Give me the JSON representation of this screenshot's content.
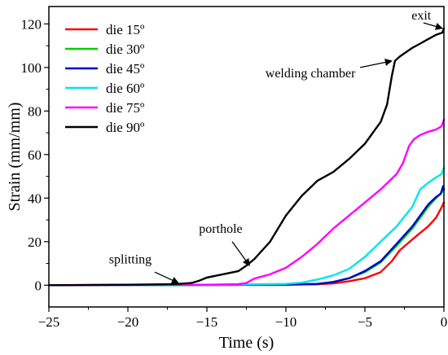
{
  "chart_data": {
    "type": "line",
    "xlabel": "Time (s)",
    "ylabel": "Strain (mm/mm)",
    "xlim": [
      -25,
      0
    ],
    "ylim": [
      -10,
      128
    ],
    "x_ticks": [
      -25,
      -20,
      -15,
      -10,
      -5,
      0
    ],
    "y_ticks": [
      0,
      20,
      40,
      60,
      80,
      100,
      120
    ],
    "grid": false,
    "legend_position": "top-left",
    "series": [
      {
        "name": "die 15º",
        "color": "#ff0000",
        "points": [
          [
            -25,
            0
          ],
          [
            -15,
            0.1
          ],
          [
            -10,
            0.2
          ],
          [
            -8,
            0.4
          ],
          [
            -7,
            0.8
          ],
          [
            -6,
            1.8
          ],
          [
            -5,
            3.2
          ],
          [
            -4,
            6
          ],
          [
            -3.3,
            11
          ],
          [
            -2.8,
            16
          ],
          [
            -2,
            21
          ],
          [
            -1,
            27
          ],
          [
            -0.5,
            31
          ],
          [
            -0.2,
            35
          ],
          [
            0,
            38
          ]
        ]
      },
      {
        "name": "die 30º",
        "color": "#00d000",
        "points": [
          [
            -25,
            0
          ],
          [
            -15,
            0.1
          ],
          [
            -10,
            0.3
          ],
          [
            -8,
            0.6
          ],
          [
            -7,
            1.5
          ],
          [
            -6,
            3.2
          ],
          [
            -5,
            6
          ],
          [
            -4,
            10.5
          ],
          [
            -3,
            18
          ],
          [
            -2,
            26
          ],
          [
            -1.5,
            31
          ],
          [
            -1,
            36
          ],
          [
            -0.5,
            40
          ],
          [
            -0.1,
            43
          ],
          [
            0,
            44
          ]
        ]
      },
      {
        "name": "die 45º",
        "color": "#0000cc",
        "points": [
          [
            -25,
            0
          ],
          [
            -15,
            0.1
          ],
          [
            -10,
            0.3
          ],
          [
            -8,
            0.6
          ],
          [
            -7,
            1.5
          ],
          [
            -6,
            3.2
          ],
          [
            -5,
            6.5
          ],
          [
            -4,
            11
          ],
          [
            -3,
            19
          ],
          [
            -2,
            27
          ],
          [
            -1.5,
            32
          ],
          [
            -1,
            37
          ],
          [
            -0.5,
            40.5
          ],
          [
            -0.2,
            42
          ],
          [
            -0.05,
            45.5
          ],
          [
            0,
            44
          ]
        ]
      },
      {
        "name": "die 60º",
        "color": "#00e5ee",
        "points": [
          [
            -25,
            0
          ],
          [
            -15,
            0.1
          ],
          [
            -10,
            0.6
          ],
          [
            -9,
            1.2
          ],
          [
            -8,
            2.6
          ],
          [
            -7,
            4.5
          ],
          [
            -6,
            7.5
          ],
          [
            -5,
            13
          ],
          [
            -4,
            20
          ],
          [
            -3,
            27
          ],
          [
            -2,
            36
          ],
          [
            -1.5,
            44
          ],
          [
            -1,
            47
          ],
          [
            -0.5,
            49.5
          ],
          [
            -0.15,
            51
          ],
          [
            0,
            54
          ]
        ]
      },
      {
        "name": "die 75º",
        "color": "#ff00ff",
        "points": [
          [
            -25,
            0
          ],
          [
            -15,
            0.2
          ],
          [
            -13,
            0.5
          ],
          [
            -12.5,
            1
          ],
          [
            -12,
            3
          ],
          [
            -11,
            5
          ],
          [
            -10,
            8
          ],
          [
            -9,
            13
          ],
          [
            -8,
            19
          ],
          [
            -7,
            26
          ],
          [
            -6,
            32
          ],
          [
            -5,
            38
          ],
          [
            -4,
            44
          ],
          [
            -3,
            51
          ],
          [
            -2.6,
            56
          ],
          [
            -2.2,
            64
          ],
          [
            -1.9,
            67
          ],
          [
            -1.5,
            69
          ],
          [
            -1,
            70.5
          ],
          [
            -0.5,
            71.5
          ],
          [
            -0.15,
            73
          ],
          [
            0,
            76
          ]
        ]
      },
      {
        "name": "die 90º",
        "color": "#000000",
        "points": [
          [
            -25,
            0
          ],
          [
            -20,
            0.2
          ],
          [
            -17,
            0.5
          ],
          [
            -16,
            1
          ],
          [
            -15.5,
            2
          ],
          [
            -15,
            3.5
          ],
          [
            -14,
            5
          ],
          [
            -13,
            6.5
          ],
          [
            -12.5,
            9
          ],
          [
            -12,
            12
          ],
          [
            -11.5,
            16
          ],
          [
            -11,
            20
          ],
          [
            -10.5,
            26
          ],
          [
            -10,
            32
          ],
          [
            -9,
            41
          ],
          [
            -8,
            48
          ],
          [
            -7,
            52
          ],
          [
            -6,
            58
          ],
          [
            -5,
            65
          ],
          [
            -4,
            75
          ],
          [
            -3.6,
            83
          ],
          [
            -3.3,
            96
          ],
          [
            -3.1,
            103
          ],
          [
            -2.8,
            105
          ],
          [
            -2,
            109
          ],
          [
            -1.5,
            111
          ],
          [
            -1,
            113
          ],
          [
            -0.5,
            115
          ],
          [
            -0.1,
            116
          ],
          [
            0,
            118
          ]
        ]
      }
    ],
    "annotations": [
      {
        "label": "exit",
        "text_x": -2.05,
        "text_y": 122,
        "arrow_from": [
          -1.3,
          120.5
        ],
        "arrow_to": [
          -0.1,
          118
        ]
      },
      {
        "label": "welding chamber",
        "text_x": -11.3,
        "text_y": 95.5,
        "arrow_from": [
          -5.3,
          100
        ],
        "arrow_to": [
          -3.3,
          103
        ]
      },
      {
        "label": "porthole",
        "text_x": -15.5,
        "text_y": 24,
        "arrow_from": [
          -13.4,
          20
        ],
        "arrow_to": [
          -12.3,
          9
        ]
      },
      {
        "label": "splitting",
        "text_x": -21.2,
        "text_y": 10,
        "arrow_from": [
          -18.3,
          6
        ],
        "arrow_to": [
          -16.8,
          1
        ]
      }
    ]
  }
}
